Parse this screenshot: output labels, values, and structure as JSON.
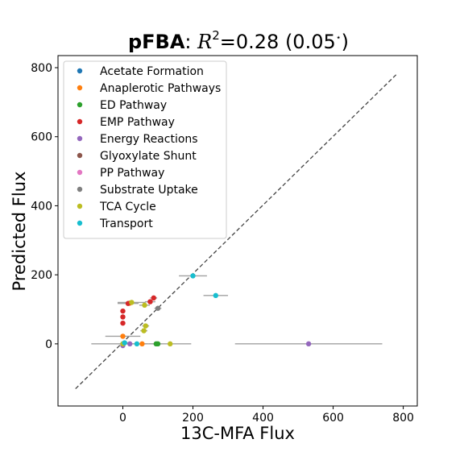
{
  "chart_data": {
    "type": "scatter",
    "title": {
      "method": "pFBA",
      "sep": ": ",
      "r_symbol": "R",
      "r_exp": "2",
      "value": "=0.28 (0.05",
      "star": "⋆",
      "close": ")"
    },
    "xlabel": "13C-MFA Flux",
    "ylabel": "Predicted Flux",
    "xlim": [
      -185,
      840
    ],
    "ylim": [
      -180,
      835
    ],
    "xticks": [
      0,
      200,
      400,
      600,
      800
    ],
    "yticks": [
      0,
      200,
      400,
      600,
      800
    ],
    "identity_line": [
      [
        -135,
        -130
      ],
      [
        780,
        780
      ]
    ],
    "legend_position": "upper-left",
    "series": [
      {
        "name": "Acetate Formation",
        "color": "#1f77b4",
        "points": [
          {
            "x": 0,
            "y": 0
          }
        ]
      },
      {
        "name": "Anaplerotic Pathways",
        "color": "#ff7f0e",
        "points": [
          {
            "x": 0,
            "y": 22,
            "xerr": 50
          },
          {
            "x": 55,
            "y": 0,
            "xerr": 10
          },
          {
            "x": 20,
            "y": 118,
            "xerr": 10
          }
        ]
      },
      {
        "name": "ED Pathway",
        "color": "#2ca02c",
        "points": [
          {
            "x": 95,
            "y": 0,
            "xerr": 10
          },
          {
            "x": 100,
            "y": 0,
            "xerr": 10
          }
        ]
      },
      {
        "name": "EMP Pathway",
        "color": "#d62728",
        "points": [
          {
            "x": 0,
            "y": 95
          },
          {
            "x": 0,
            "y": 78
          },
          {
            "x": 0,
            "y": 60
          },
          {
            "x": 15,
            "y": 117,
            "xerr": 30
          },
          {
            "x": 78,
            "y": 122,
            "xerr": 15
          },
          {
            "x": 88,
            "y": 133,
            "xerr": 10
          }
        ]
      },
      {
        "name": "Energy Reactions",
        "color": "#9467bd",
        "points": [
          {
            "x": 0,
            "y": -5
          },
          {
            "x": 20,
            "y": 0
          },
          {
            "x": 530,
            "y": 0,
            "xerr": 210
          }
        ]
      },
      {
        "name": "Glyoxylate Shunt",
        "color": "#8c564b",
        "points": []
      },
      {
        "name": "PP Pathway",
        "color": "#e377c2",
        "points": []
      },
      {
        "name": "Substrate Uptake",
        "color": "#7f7f7f",
        "points": [
          {
            "x": 100,
            "y": 103,
            "xerr": 10
          }
        ]
      },
      {
        "name": "TCA Cycle",
        "color": "#bcbd22",
        "points": [
          {
            "x": 65,
            "y": 52,
            "xerr": 10
          },
          {
            "x": 60,
            "y": 38,
            "xerr": 10
          },
          {
            "x": 62,
            "y": 112,
            "xerr": 15
          },
          {
            "x": 25,
            "y": 120,
            "xerr": 40
          },
          {
            "x": 135,
            "y": 0,
            "xerr": 60
          },
          {
            "x": 0,
            "y": 0,
            "xerr": 90
          }
        ]
      },
      {
        "name": "Transport",
        "color": "#17becf",
        "points": [
          {
            "x": 200,
            "y": 197,
            "xerr": 40
          },
          {
            "x": 265,
            "y": 140,
            "xerr": 35
          },
          {
            "x": 40,
            "y": 0,
            "xerr": 30
          },
          {
            "x": 5,
            "y": 3,
            "xerr": 10
          }
        ]
      }
    ]
  }
}
